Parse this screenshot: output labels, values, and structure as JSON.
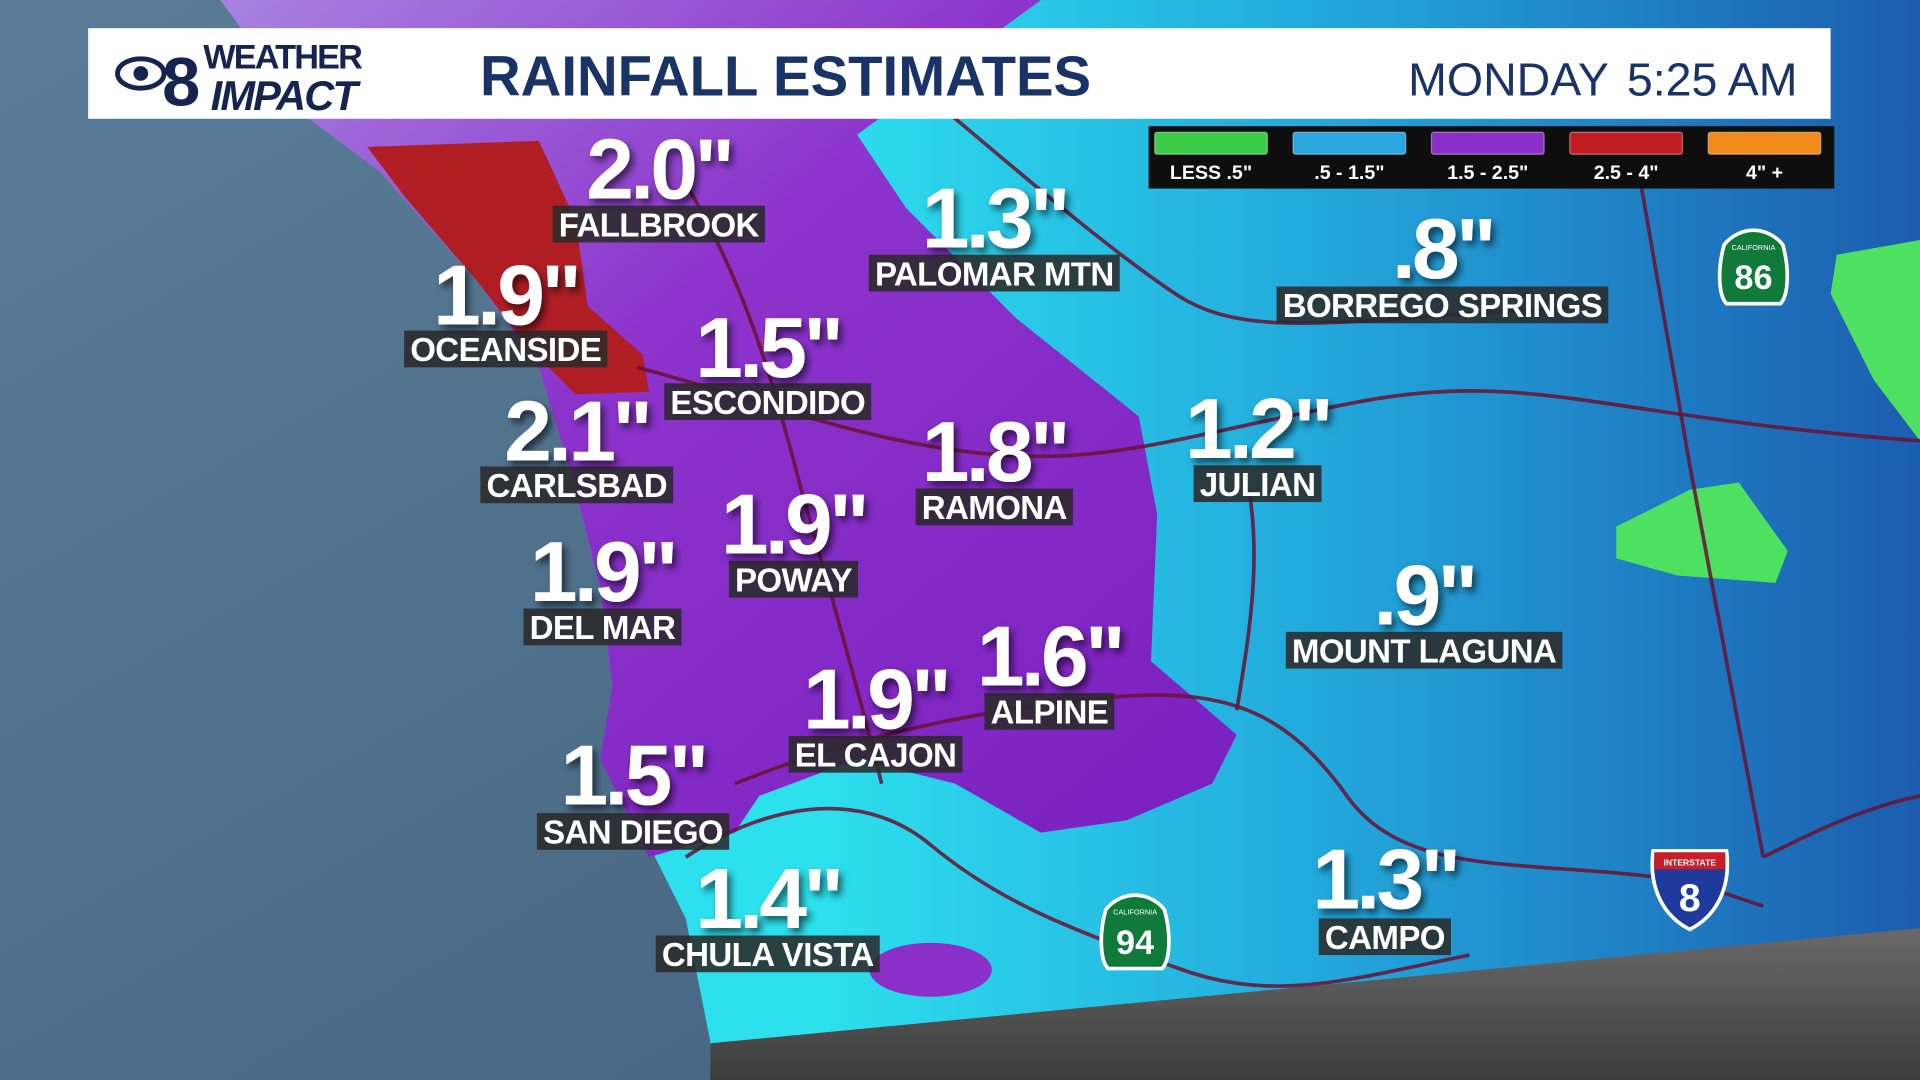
{
  "header": {
    "logo": {
      "number": "8",
      "line1": "WEATHER",
      "line2": "IMPACT"
    },
    "title": "RAINFALL ESTIMATES",
    "day": "MONDAY",
    "time": "5:25 AM"
  },
  "legend": [
    {
      "label": "LESS .5\"",
      "color": "#3ccc48"
    },
    {
      "label": ".5 - 1.5\"",
      "color": "#2aa6e0"
    },
    {
      "label": "1.5 - 2.5\"",
      "color": "#8a2fc8"
    },
    {
      "label": "2.5 - 4\"",
      "color": "#c01c22"
    },
    {
      "label": "4\" +",
      "color": "#f08a18"
    }
  ],
  "locations": [
    {
      "amount": "2.0\"",
      "name": "FALLBROOK"
    },
    {
      "amount": "1.3\"",
      "name": "PALOMAR MTN"
    },
    {
      "amount": ".8\"",
      "name": "BORREGO SPRINGS"
    },
    {
      "amount": "1.9\"",
      "name": "OCEANSIDE"
    },
    {
      "amount": "1.5\"",
      "name": "ESCONDIDO"
    },
    {
      "amount": "2.1\"",
      "name": "CARLSBAD"
    },
    {
      "amount": "1.8\"",
      "name": "RAMONA"
    },
    {
      "amount": "1.2\"",
      "name": "JULIAN"
    },
    {
      "amount": "1.9\"",
      "name": "POWAY"
    },
    {
      "amount": "1.9\"",
      "name": "DEL MAR"
    },
    {
      "amount": ".9\"",
      "name": "MOUNT LAGUNA"
    },
    {
      "amount": "1.6\"",
      "name": "ALPINE"
    },
    {
      "amount": "1.9\"",
      "name": "EL CAJON"
    },
    {
      "amount": "1.5\"",
      "name": "SAN DIEGO"
    },
    {
      "amount": "1.4\"",
      "name": "CHULA VISTA"
    },
    {
      "amount": "1.3\"",
      "name": "CAMPO"
    }
  ],
  "shields": [
    {
      "number": "86",
      "label": "CALIFORNIA"
    },
    {
      "number": "94",
      "label": "CALIFORNIA"
    },
    {
      "number": "8",
      "label": "INTERSTATE"
    }
  ]
}
